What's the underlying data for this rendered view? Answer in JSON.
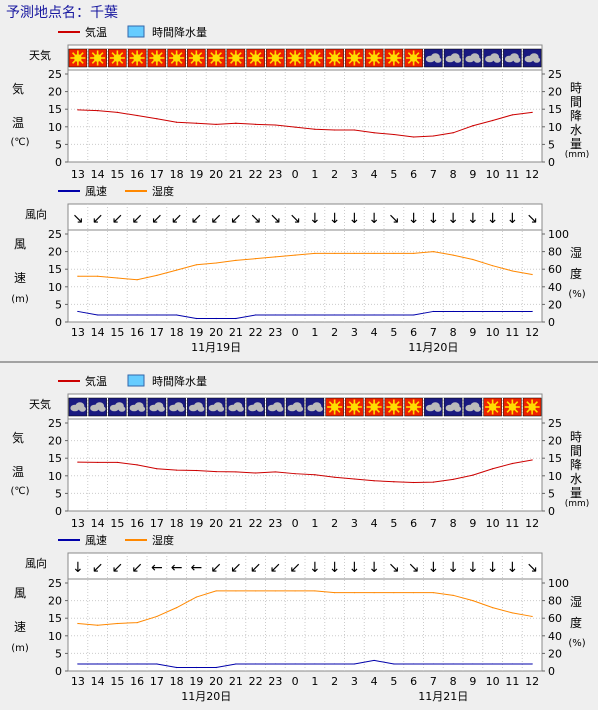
{
  "page": {
    "title": "予測地点名：千葉"
  },
  "labels": {
    "weather": "天気",
    "temp_axis": [
      "気",
      "温",
      "(℃)"
    ],
    "precip_axis": [
      "時",
      "間",
      "降",
      "水",
      "量",
      "(mm)"
    ],
    "wind_dir": "風向",
    "wind_axis": [
      "風",
      "速",
      "(m)"
    ],
    "humid_axis": [
      "湿",
      "度",
      "(%)"
    ]
  },
  "legends": {
    "top": [
      {
        "name": "気温",
        "kind": "line",
        "color": "#cc0000"
      },
      {
        "name": "時間降水量",
        "kind": "box",
        "color": "#66ccff"
      }
    ],
    "bottom": [
      {
        "name": "風速",
        "kind": "line",
        "color": "#0000aa"
      },
      {
        "name": "湿度",
        "kind": "line",
        "color": "#ff8800"
      }
    ]
  },
  "colors": {
    "temperature": "#cc0000",
    "wind": "#0000aa",
    "humidity": "#ff8800",
    "sunny_bg": "#ee2200",
    "sunny_sun": "#ffdd00",
    "cloudy_bg": "#1a1a80",
    "cloudy_cloud": "#bbbbbb"
  },
  "chart_data": [
    {
      "type": "line",
      "panel": "temperature-precipitation",
      "x": [
        "13",
        "14",
        "15",
        "16",
        "17",
        "18",
        "19",
        "20",
        "21",
        "22",
        "23",
        "0",
        "1",
        "2",
        "3",
        "4",
        "5",
        "6",
        "7",
        "8",
        "9",
        "10",
        "11",
        "12"
      ],
      "weather_icons": [
        "sunny",
        "sunny",
        "sunny",
        "sunny",
        "sunny",
        "sunny",
        "sunny",
        "sunny",
        "sunny",
        "sunny",
        "sunny",
        "sunny",
        "sunny",
        "sunny",
        "sunny",
        "sunny",
        "sunny",
        "sunny",
        "cloudy",
        "cloudy",
        "cloudy",
        "cloudy",
        "cloudy",
        "cloudy"
      ],
      "series": [
        {
          "name": "気温",
          "values": [
            14.8,
            14.6,
            14.1,
            13.2,
            12.3,
            11.3,
            11.0,
            10.7,
            11.0,
            10.7,
            10.5,
            9.9,
            9.3,
            9.1,
            9.1,
            8.3,
            7.8,
            7.1,
            7.4,
            8.3,
            10.3,
            11.8,
            13.4,
            14.1
          ]
        },
        {
          "name": "時間降水量",
          "values": [
            0,
            0,
            0,
            0,
            0,
            0,
            0,
            0,
            0,
            0,
            0,
            0,
            0,
            0,
            0,
            0,
            0,
            0,
            0,
            0,
            0,
            0,
            0,
            0
          ]
        }
      ],
      "ylim": [
        0,
        25
      ],
      "y2lim": [
        0,
        25
      ],
      "yticks": [
        0,
        5,
        10,
        15,
        20,
        25
      ]
    },
    {
      "type": "line",
      "panel": "wind-humidity",
      "x": [
        "13",
        "14",
        "15",
        "16",
        "17",
        "18",
        "19",
        "20",
        "21",
        "22",
        "23",
        "0",
        "1",
        "2",
        "3",
        "4",
        "5",
        "6",
        "7",
        "8",
        "9",
        "10",
        "11",
        "12"
      ],
      "date_labels": [
        {
          "at": 7.5,
          "text": "11月19日"
        },
        {
          "at": 18.5,
          "text": "11月20日"
        }
      ],
      "wind_dir": [
        "↘",
        "↙",
        "↙",
        "↙",
        "↙",
        "↙",
        "↙",
        "↙",
        "↙",
        "↘",
        "↘",
        "↘",
        "↓",
        "↓",
        "↓",
        "↓",
        "↘",
        "↓",
        "↓",
        "↓",
        "↓",
        "↓",
        "↓",
        "↘"
      ],
      "series": [
        {
          "name": "風速",
          "values": [
            3,
            2,
            2,
            2,
            2,
            2,
            1,
            1,
            1,
            2,
            2,
            2,
            2,
            2,
            2,
            2,
            2,
            2,
            3,
            3,
            3,
            3,
            3,
            3
          ]
        },
        {
          "name": "湿度",
          "values": [
            52,
            52,
            50,
            48,
            53,
            59,
            65,
            67,
            70,
            72,
            74,
            76,
            78,
            78,
            78,
            78,
            78,
            78,
            80,
            76,
            71,
            64,
            58,
            54
          ]
        }
      ],
      "ylim": [
        0,
        25
      ],
      "y2lim": [
        0,
        100
      ],
      "yticks": [
        0,
        5,
        10,
        15,
        20,
        25
      ],
      "y2ticks": [
        0,
        20,
        40,
        60,
        80,
        100
      ]
    },
    {
      "type": "line",
      "panel": "temperature-precipitation",
      "x": [
        "13",
        "14",
        "15",
        "16",
        "17",
        "18",
        "19",
        "20",
        "21",
        "22",
        "23",
        "0",
        "1",
        "2",
        "3",
        "4",
        "5",
        "6",
        "7",
        "8",
        "9",
        "10",
        "11",
        "12"
      ],
      "weather_icons": [
        "cloudy",
        "cloudy",
        "cloudy",
        "cloudy",
        "cloudy",
        "cloudy",
        "cloudy",
        "cloudy",
        "cloudy",
        "cloudy",
        "cloudy",
        "cloudy",
        "cloudy",
        "sunny",
        "sunny",
        "sunny",
        "sunny",
        "sunny",
        "cloudy",
        "cloudy",
        "cloudy",
        "sunny",
        "sunny",
        "sunny"
      ],
      "series": [
        {
          "name": "気温",
          "values": [
            13.9,
            13.8,
            13.8,
            13.1,
            12.0,
            11.6,
            11.5,
            11.2,
            11.1,
            10.8,
            11.1,
            10.6,
            10.3,
            9.6,
            9.1,
            8.6,
            8.3,
            8.1,
            8.2,
            9.0,
            10.2,
            12.0,
            13.5,
            14.5
          ]
        },
        {
          "name": "時間降水量",
          "values": [
            0,
            0,
            0,
            0,
            0,
            0,
            0,
            0,
            0,
            0,
            0,
            0,
            0,
            0,
            0,
            0,
            0,
            0,
            0,
            0,
            0,
            0,
            0,
            0
          ]
        }
      ],
      "ylim": [
        0,
        25
      ],
      "y2lim": [
        0,
        25
      ],
      "yticks": [
        0,
        5,
        10,
        15,
        20,
        25
      ]
    },
    {
      "type": "line",
      "panel": "wind-humidity",
      "x": [
        "13",
        "14",
        "15",
        "16",
        "17",
        "18",
        "19",
        "20",
        "21",
        "22",
        "23",
        "0",
        "1",
        "2",
        "3",
        "4",
        "5",
        "6",
        "7",
        "8",
        "9",
        "10",
        "11",
        "12"
      ],
      "date_labels": [
        {
          "at": 7.0,
          "text": "11月20日"
        },
        {
          "at": 19.0,
          "text": "11月21日"
        }
      ],
      "wind_dir": [
        "↓",
        "↙",
        "↙",
        "↙",
        "←",
        "←",
        "←",
        "↙",
        "↙",
        "↙",
        "↙",
        "↙",
        "↓",
        "↓",
        "↓",
        "↓",
        "↘",
        "↘",
        "↓",
        "↓",
        "↓",
        "↓",
        "↓",
        "↘"
      ],
      "series": [
        {
          "name": "風速",
          "values": [
            2,
            2,
            2,
            2,
            2,
            1,
            1,
            1,
            2,
            2,
            2,
            2,
            2,
            2,
            2,
            3,
            2,
            2,
            2,
            2,
            2,
            2,
            2,
            2
          ]
        },
        {
          "name": "湿度",
          "values": [
            54,
            52,
            54,
            55,
            62,
            72,
            84,
            91,
            91,
            91,
            91,
            91,
            91,
            89,
            89,
            89,
            89,
            89,
            89,
            86,
            80,
            72,
            66,
            62
          ]
        }
      ],
      "ylim": [
        0,
        25
      ],
      "y2lim": [
        0,
        100
      ],
      "yticks": [
        0,
        5,
        10,
        15,
        20,
        25
      ],
      "y2ticks": [
        0,
        20,
        40,
        60,
        80,
        100
      ]
    }
  ]
}
